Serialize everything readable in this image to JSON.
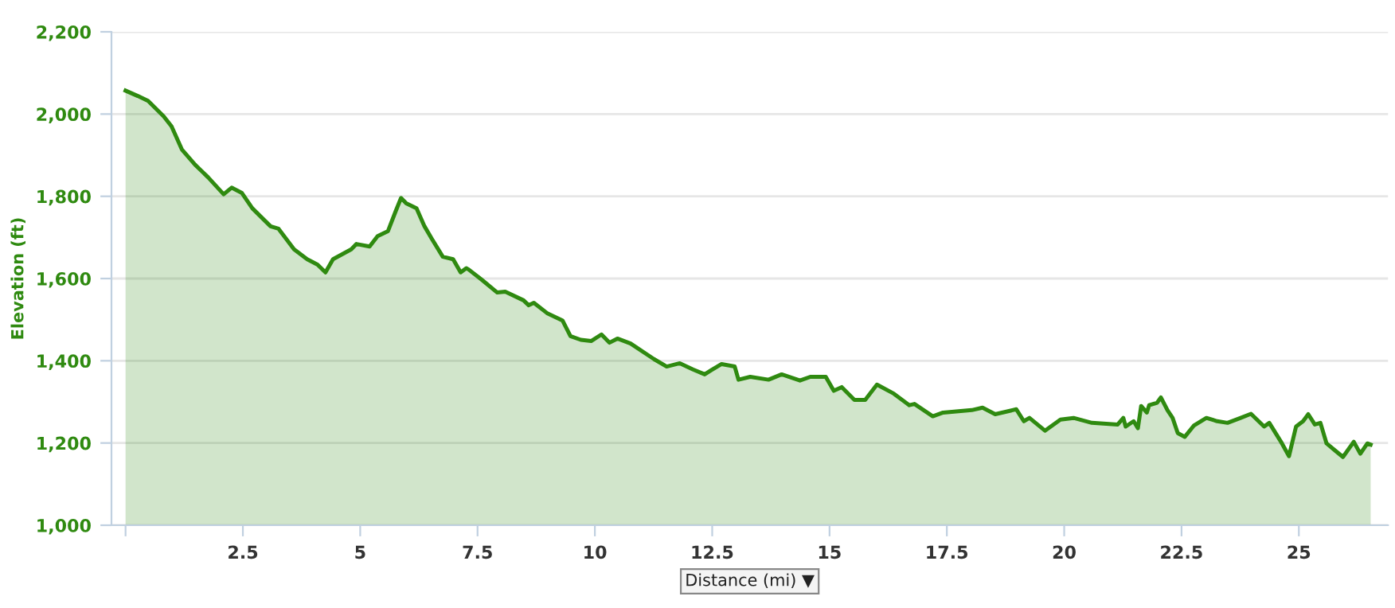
{
  "chart_data": {
    "type": "area",
    "xlabel": "Distance (mi) ▼",
    "ylabel": "Elevation (ft)",
    "xlim": [
      -0.3,
      26.9
    ],
    "xticks": [
      {
        "value": 0,
        "label": null
      },
      2.5,
      5,
      7.5,
      10,
      12.5,
      15,
      17.5,
      20,
      22.5,
      25
    ],
    "ylim": [
      1000,
      2200
    ],
    "yticks": [
      {
        "value": 1000,
        "label": "1,000"
      },
      {
        "value": 1200,
        "label": "1,200"
      },
      {
        "value": 1400,
        "label": "1,400"
      },
      {
        "value": 1600,
        "label": "1,600"
      },
      {
        "value": 1800,
        "label": "1,800"
      },
      {
        "value": 2000,
        "label": "2,000"
      },
      {
        "value": 2200,
        "label": "2,200"
      }
    ],
    "grid": "y",
    "legend": false,
    "marker": "none",
    "line_style": "solid",
    "series": [
      {
        "color": "#2f8a10",
        "x": [
          0,
          0.26,
          0.48,
          0.81,
          0.98,
          1.2,
          1.48,
          1.76,
          2.09,
          2.26,
          2.48,
          2.7,
          3.09,
          3.26,
          3.59,
          3.87,
          4.09,
          4.26,
          4.42,
          4.81,
          4.92,
          5.2,
          5.37,
          5.59,
          5.76,
          5.87,
          5.98,
          6.2,
          6.37,
          6.53,
          6.76,
          6.98,
          7.14,
          7.26,
          7.31,
          7.59,
          7.92,
          8.09,
          8.48,
          8.59,
          8.7,
          8.98,
          9.31,
          9.48,
          9.7,
          9.92,
          10.14,
          10.31,
          10.48,
          10.76,
          11.26,
          11.53,
          11.81,
          12.09,
          12.34,
          12.48,
          12.7,
          12.98,
          13.06,
          13.31,
          13.7,
          13.98,
          14.37,
          14.59,
          14.92,
          15.09,
          15.26,
          15.53,
          15.76,
          16.01,
          16.37,
          16.7,
          16.81,
          17.2,
          17.42,
          18.03,
          18.26,
          18.53,
          18.98,
          19.14,
          19.26,
          19.59,
          19.92,
          20.2,
          20.59,
          21.14,
          21.26,
          21.31,
          21.48,
          21.57,
          21.64,
          21.76,
          21.81,
          21.98,
          22.06,
          22.2,
          22.31,
          22.42,
          22.57,
          22.76,
          23.03,
          23.26,
          23.48,
          23.76,
          23.98,
          24.26,
          24.37,
          24.64,
          24.79,
          24.94,
          25.09,
          25.2,
          25.34,
          25.46,
          25.59,
          25.76,
          25.94,
          26.17,
          26.31,
          26.46,
          26.53
        ],
        "values": [
          2057,
          2044,
          2032,
          1995,
          1970,
          1914,
          1877,
          1846,
          1805,
          1821,
          1808,
          1771,
          1727,
          1721,
          1671,
          1647,
          1634,
          1615,
          1647,
          1671,
          1684,
          1678,
          1703,
          1715,
          1765,
          1796,
          1783,
          1771,
          1727,
          1696,
          1653,
          1647,
          1615,
          1625,
          1622,
          1597,
          1566,
          1568,
          1547,
          1535,
          1541,
          1516,
          1498,
          1460,
          1451,
          1448,
          1464,
          1444,
          1454,
          1442,
          1404,
          1386,
          1394,
          1379,
          1367,
          1377,
          1392,
          1386,
          1354,
          1361,
          1354,
          1367,
          1352,
          1361,
          1361,
          1327,
          1336,
          1305,
          1305,
          1342,
          1320,
          1292,
          1295,
          1265,
          1274,
          1280,
          1286,
          1270,
          1282,
          1253,
          1261,
          1230,
          1257,
          1261,
          1249,
          1245,
          1261,
          1240,
          1253,
          1236,
          1290,
          1274,
          1292,
          1298,
          1311,
          1280,
          1261,
          1224,
          1215,
          1242,
          1261,
          1253,
          1249,
          1261,
          1271,
          1240,
          1249,
          1199,
          1168,
          1240,
          1253,
          1270,
          1245,
          1249,
          1199,
          1183,
          1166,
          1203,
          1174,
          1199,
          1196
        ]
      }
    ]
  }
}
